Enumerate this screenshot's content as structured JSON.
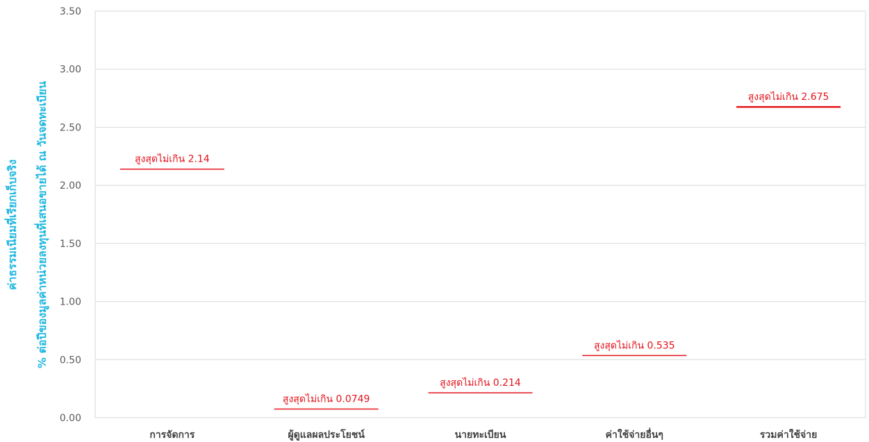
{
  "chart_data": {
    "type": "line",
    "chart_style": "horizontal limit markers per category",
    "categories": [
      "การจัดการ",
      "ผู้ดูแลผลประโยชน์",
      "นายทะเบียน",
      "ค่าใช้จ่ายอื่นๆ",
      "รวมค่าใช้จ่าย"
    ],
    "series": [
      {
        "values": [
          2.14,
          0.0749,
          0.214,
          0.535,
          2.675
        ],
        "labels": [
          "สูงสุดไม่เกิน 2.14",
          "สูงสุดไม่เกิน 0.0749",
          "สูงสุดไม่เกิน 0.214",
          "สูงสุดไม่เกิน 0.535",
          "สูงสุดไม่เกิน 2.675"
        ],
        "color": "#e3121a"
      }
    ],
    "ylabel_lines": [
      "ค่าธรรมเนียมที่เรียกเก็บจริง",
      "% ต่อปีของมูลค่าหน่วยลงทุนที่เสนอขายได้ ณ วันจดทะเบียน"
    ],
    "ylabel_color": "#1fb7e0",
    "yticks": [
      "0.00",
      "0.50",
      "1.00",
      "1.50",
      "2.00",
      "2.50",
      "3.00",
      "3.50"
    ],
    "ytick_values": [
      0,
      0.5,
      1,
      1.5,
      2,
      2.5,
      3,
      3.5
    ],
    "ylim": [
      0,
      3.5
    ],
    "grid": true,
    "legend": "none"
  }
}
